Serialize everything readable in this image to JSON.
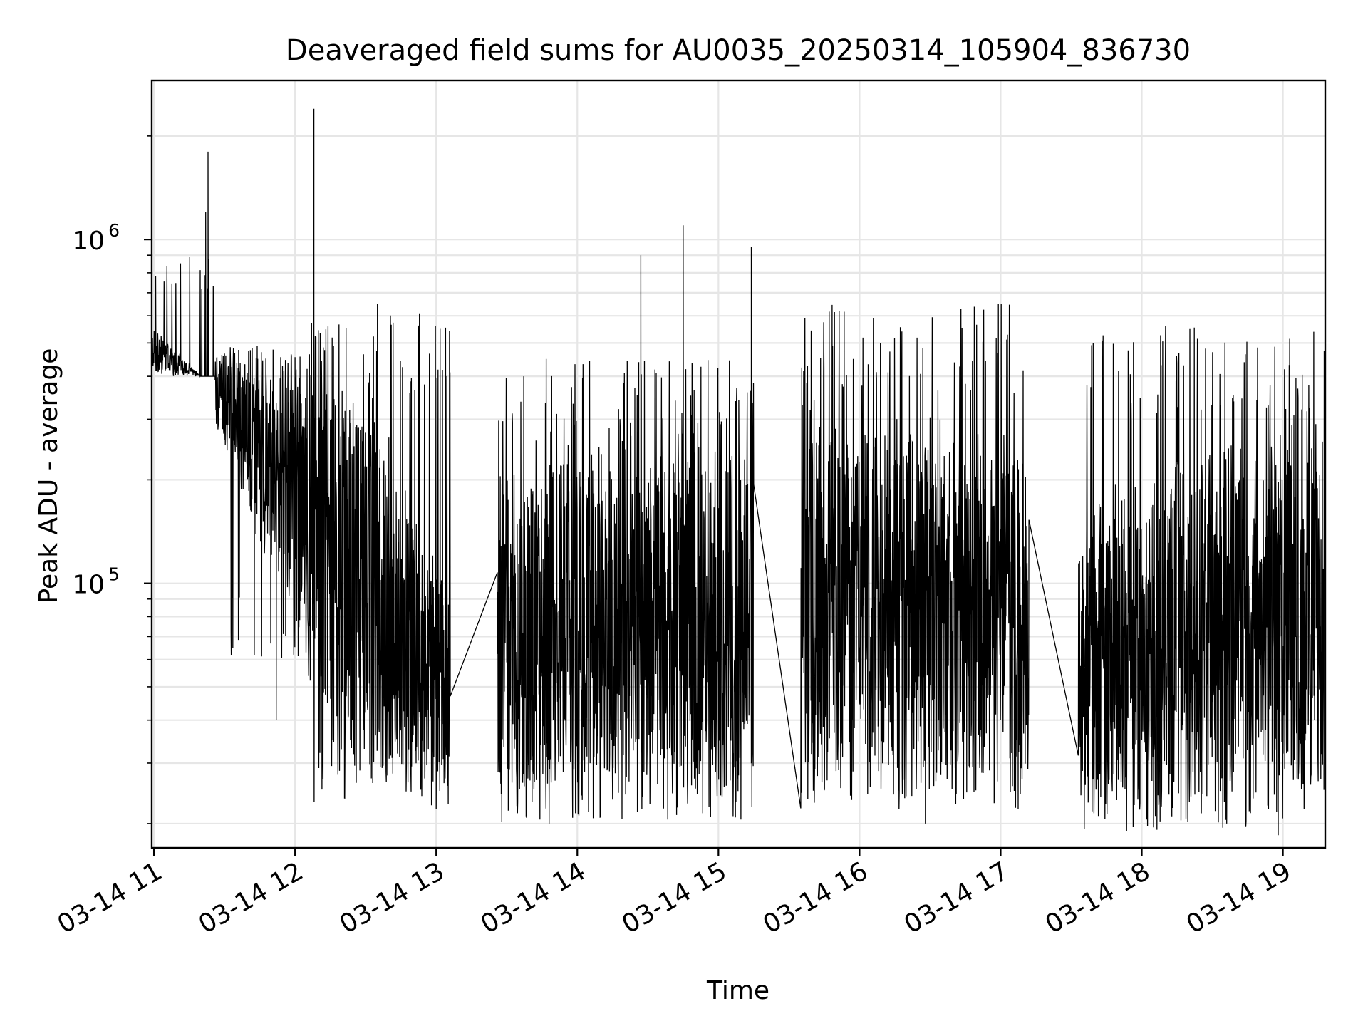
{
  "chart_data": {
    "type": "line",
    "title": "Deaveraged field sums for AU0035_20250314_105904_836730",
    "xlabel": "Time",
    "ylabel": "Peak ADU - average",
    "x_is_time": true,
    "xlim": [
      "03-14 10:59:04",
      "03-14 19:18:00"
    ],
    "ylim": [
      17000,
      2900000
    ],
    "yscale": "log",
    "grid": true,
    "x_ticks": [
      "03-14 11",
      "03-14 12",
      "03-14 13",
      "03-14 14",
      "03-14 15",
      "03-14 16",
      "03-14 17",
      "03-14 18",
      "03-14 19"
    ],
    "y_ticks": [
      {
        "value": 100000,
        "base": "10",
        "exp": "5"
      },
      {
        "value": 1000000,
        "base": "10",
        "exp": "6"
      }
    ],
    "line_color": "#000000",
    "series": [
      {
        "segments": [
          {
            "start": "03-14 10:59:04",
            "end": "03-14 11:26:00",
            "from": 480000,
            "to": 380000,
            "low": 400000,
            "high": 900000,
            "spikes": [
              [
                "03-14 11:23:00",
                1800000
              ],
              [
                "03-14 11:22:00",
                1200000
              ]
            ]
          },
          {
            "start": "03-14 11:26:00",
            "end": "03-14 12:05:00",
            "from": 380000,
            "to": 150000,
            "low": 60000,
            "high": 500000,
            "spikes": [
              [
                "03-14 12:08:00",
                2400000
              ],
              [
                "03-14 11:52:00",
                40000
              ]
            ]
          },
          {
            "start": "03-14 12:05:00",
            "end": "03-14 13:06:00",
            "from": 150000,
            "to": 50000,
            "low": 22000,
            "high": 620000,
            "spikes": [
              [
                "03-14 12:35:00",
                650000
              ],
              [
                "03-14 13:00:00",
                22000
              ]
            ]
          },
          {
            "start": "03-14 13:26:00",
            "end": "03-14 15:15:00",
            "from": 70000,
            "to": 85000,
            "low": 20000,
            "high": 450000,
            "spikes": [
              [
                "03-14 14:45:00",
                1100000
              ],
              [
                "03-14 14:27:00",
                900000
              ],
              [
                "03-14 15:14:00",
                950000
              ],
              [
                "03-14 13:48:00",
                20000
              ]
            ]
          },
          {
            "start": "03-14 15:35:00",
            "end": "03-14 17:12:00",
            "from": 100000,
            "to": 80000,
            "low": 22000,
            "high": 650000,
            "spikes": [
              [
                "03-14 16:59:00",
                650000
              ],
              [
                "03-14 16:28:00",
                20000
              ]
            ]
          },
          {
            "start": "03-14 17:33:00",
            "end": "03-14 19:18:00",
            "from": 60000,
            "to": 90000,
            "low": 19000,
            "high": 560000,
            "spikes": [
              [
                "03-14 18:58:00",
                18500
              ],
              [
                "03-14 18:05:00",
                19500
              ]
            ]
          }
        ]
      }
    ]
  }
}
